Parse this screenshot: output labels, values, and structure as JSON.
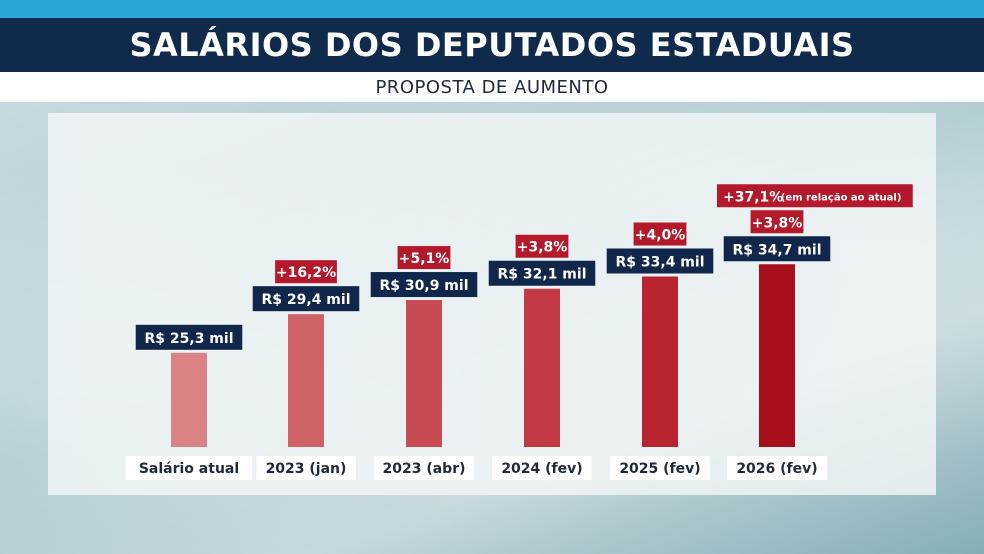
{
  "header": {
    "title": "SALÁRIOS DOS DEPUTADOS ESTADUAIS",
    "subtitle": "PROPOSTA DE AUMENTO"
  },
  "colors": {
    "title_bg": "#0f2a4a",
    "top_stripe": "#2aa6d6",
    "label_box": "#10264a",
    "pct_box": "#b3192b"
  },
  "chart_data": {
    "type": "bar",
    "title": "SALÁRIOS DOS DEPUTADOS ESTADUAIS",
    "subtitle": "PROPOSTA DE AUMENTO",
    "categories": [
      "Salário atual",
      "2023 (jan)",
      "2023 (abr)",
      "2024 (fev)",
      "2025 (fev)",
      "2026 (fev)"
    ],
    "values": [
      25.3,
      29.4,
      30.9,
      32.1,
      33.4,
      34.7
    ],
    "value_labels": [
      "R$ 25,3 mil",
      "R$ 29,4 mil",
      "R$ 30,9 mil",
      "R$ 32,1 mil",
      "R$ 33,4 mil",
      "R$ 34,7 mil"
    ],
    "increase_labels": [
      "",
      "+16,2%",
      "+5,1%",
      "+3,8%",
      "+4,0%",
      "+3,8%"
    ],
    "bar_colors": [
      "#d98384",
      "#cf6266",
      "#c64b52",
      "#c23a43",
      "#b82530",
      "#a80f1c"
    ],
    "annotation": {
      "value": "+37,1%",
      "note": "(em relação ao atual)"
    },
    "unit": "R$ mil",
    "ylim": [
      0,
      40
    ],
    "xlabel": "",
    "ylabel": ""
  }
}
